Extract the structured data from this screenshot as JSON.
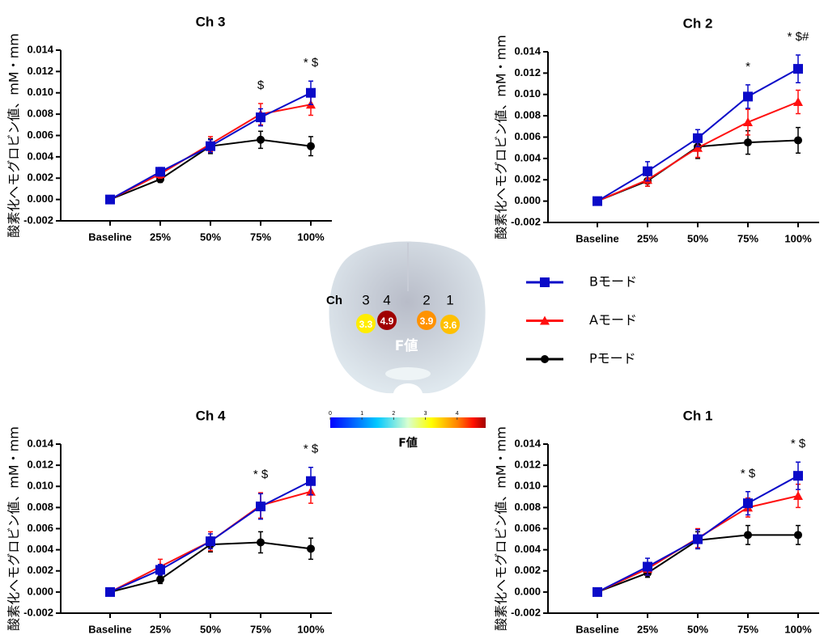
{
  "chart_data": [
    {
      "type": "line",
      "title": "Ch 3",
      "y_label": "酸素化ヘモグロビン値、mM・mm",
      "categories": [
        "Baseline",
        "25%",
        "50%",
        "75%",
        "100%"
      ],
      "ylim": [
        -0.002,
        0.014
      ],
      "yticks": [
        -0.002,
        {
          "value": 0,
          "label": "0.000"
        },
        0.002,
        0.004,
        0.006,
        0.008,
        {
          "value": 0.01,
          "label": "0.010"
        },
        0.012,
        0.014
      ],
      "annotations": [
        null,
        null,
        null,
        "$",
        "* $"
      ],
      "series": [
        {
          "name": "Bモード",
          "color": "#0a0ac8",
          "marker": "square",
          "values": [
            0,
            0.0026,
            0.005,
            0.0077,
            0.01
          ],
          "errors": [
            0,
            0.0004,
            0.0006,
            0.0008,
            0.0011
          ]
        },
        {
          "name": "Aモード",
          "color": "#ff1010",
          "marker": "triangle",
          "values": [
            0,
            0.0024,
            0.0052,
            0.008,
            0.0089
          ],
          "errors": [
            0,
            0.0004,
            0.0007,
            0.001,
            0.001
          ]
        },
        {
          "name": "Pモード",
          "color": "#000000",
          "marker": "circle",
          "values": [
            0,
            0.0019,
            0.005,
            0.0056,
            0.005
          ],
          "errors": [
            0,
            0.0003,
            0.0007,
            0.0008,
            0.0009
          ]
        }
      ]
    },
    {
      "type": "line",
      "title": "Ch 2",
      "y_label": "酸素化ヘモグロビン値、mM・mm",
      "categories": [
        "Baseline",
        "25%",
        "50%",
        "75%",
        "100%"
      ],
      "ylim": [
        -0.002,
        0.014
      ],
      "yticks": [
        -0.002,
        {
          "value": 0,
          "label": "0.000"
        },
        0.002,
        0.004,
        0.006,
        0.008,
        {
          "value": 0.01,
          "label": "0.010"
        },
        0.012,
        0.014
      ],
      "annotations": [
        null,
        null,
        null,
        "*",
        "* $#"
      ],
      "series": [
        {
          "name": "Bモード",
          "color": "#0a0ac8",
          "marker": "square",
          "values": [
            0,
            0.0028,
            0.0059,
            0.0098,
            0.0124
          ],
          "errors": [
            0,
            0.0009,
            0.0008,
            0.0011,
            0.0013
          ]
        },
        {
          "name": "Aモード",
          "color": "#ff1010",
          "marker": "triangle",
          "values": [
            0,
            0.002,
            0.005,
            0.0074,
            0.0093
          ],
          "errors": [
            0,
            0.0006,
            0.0009,
            0.0012,
            0.0011
          ]
        },
        {
          "name": "Pモード",
          "color": "#000000",
          "marker": "circle",
          "values": [
            0,
            0.0019,
            0.0051,
            0.0055,
            0.0057
          ],
          "errors": [
            0,
            0.0005,
            0.0011,
            0.0011,
            0.0012
          ]
        }
      ]
    },
    {
      "type": "line",
      "title": "Ch 4",
      "y_label": "酸素化ヘモグロビン値、mM・mm",
      "categories": [
        "Baseline",
        "25%",
        "50%",
        "75%",
        "100%"
      ],
      "ylim": [
        -0.002,
        0.014
      ],
      "yticks": [
        -0.002,
        {
          "value": 0,
          "label": "0.000"
        },
        0.002,
        0.004,
        0.006,
        0.008,
        {
          "value": 0.01,
          "label": "0.010"
        },
        0.012,
        0.014
      ],
      "annotations": [
        null,
        null,
        null,
        "* $",
        "* $"
      ],
      "series": [
        {
          "name": "Bモード",
          "color": "#0a0ac8",
          "marker": "square",
          "values": [
            0,
            0.0021,
            0.0048,
            0.0081,
            0.0105
          ],
          "errors": [
            0,
            0.0005,
            0.0007,
            0.0012,
            0.0013
          ]
        },
        {
          "name": "Aモード",
          "color": "#ff1010",
          "marker": "triangle",
          "values": [
            0,
            0.0024,
            0.0048,
            0.0082,
            0.0095
          ],
          "errors": [
            0,
            0.0007,
            0.0009,
            0.0012,
            0.0011
          ]
        },
        {
          "name": "Pモード",
          "color": "#000000",
          "marker": "circle",
          "values": [
            0,
            0.0012,
            0.0045,
            0.0047,
            0.0041
          ],
          "errors": [
            0,
            0.0004,
            0.0007,
            0.001,
            0.001
          ]
        }
      ]
    },
    {
      "type": "line",
      "title": "Ch 1",
      "y_label": "酸素化ヘモグロビン値、mM・mm",
      "categories": [
        "Baseline",
        "25%",
        "50%",
        "75%",
        "100%"
      ],
      "ylim": [
        -0.002,
        0.014
      ],
      "yticks": [
        -0.002,
        {
          "value": 0,
          "label": "0.000"
        },
        0.002,
        0.004,
        0.006,
        0.008,
        {
          "value": 0.01,
          "label": "0.010"
        },
        0.012,
        0.014
      ],
      "annotations": [
        null,
        null,
        null,
        "* $",
        "* $"
      ],
      "series": [
        {
          "name": "Bモード",
          "color": "#0a0ac8",
          "marker": "square",
          "values": [
            0,
            0.0024,
            0.005,
            0.0084,
            0.011
          ],
          "errors": [
            0,
            0.0008,
            0.0009,
            0.0011,
            0.0013
          ]
        },
        {
          "name": "Aモード",
          "color": "#ff1010",
          "marker": "triangle",
          "values": [
            0,
            0.0022,
            0.0051,
            0.008,
            0.0091
          ],
          "errors": [
            0,
            0.0006,
            0.0009,
            0.0009,
            0.0011
          ]
        },
        {
          "name": "Pモード",
          "color": "#000000",
          "marker": "circle",
          "values": [
            0,
            0.0018,
            0.0049,
            0.0054,
            0.0054
          ],
          "errors": [
            0,
            0.0004,
            0.0008,
            0.0009,
            0.0009
          ]
        }
      ]
    }
  ],
  "brain": {
    "ch_label": "Ch",
    "caption": "F値",
    "channels": [
      {
        "label": "3",
        "f": 3.3
      },
      {
        "label": "4",
        "f": 4.9
      },
      {
        "label": "2",
        "f": 3.9
      },
      {
        "label": "1",
        "f": 3.6
      }
    ]
  },
  "colorbar": {
    "label": "F値",
    "lim": [
      0,
      4.9
    ],
    "ticks": [
      0,
      1,
      2,
      3,
      4
    ]
  }
}
